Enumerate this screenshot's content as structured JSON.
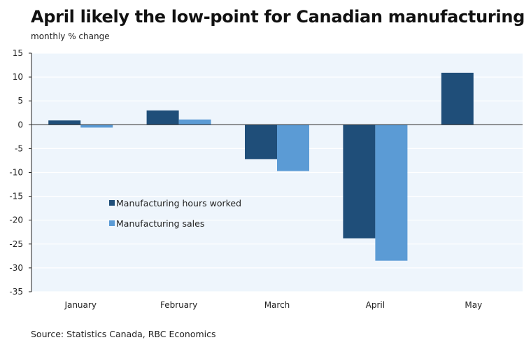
{
  "title": "April likely the low-point for Canadian manufacturing",
  "subtitle": "monthly % change",
  "source": "Source: Statistics Canada, RBC Economics",
  "colors": {
    "hours": "#1f4e79",
    "sales": "#5b9bd5",
    "plot_bg": "#eef5fc",
    "grid": "#ffffff"
  },
  "chart_data": {
    "type": "bar",
    "title": "April likely the low-point for Canadian manufacturing",
    "ylabel": "monthly % change",
    "xlabel": "",
    "categories": [
      "January",
      "February",
      "March",
      "April",
      "May"
    ],
    "ylim": [
      -35,
      15
    ],
    "yticks": [
      15,
      10,
      5,
      0,
      -5,
      -10,
      -15,
      -20,
      -25,
      -30,
      -35
    ],
    "grid": true,
    "legend_position": "center-left",
    "series": [
      {
        "name": "Manufacturing hours worked",
        "values": [
          0.9,
          3.0,
          -7.2,
          -23.8,
          10.9
        ]
      },
      {
        "name": "Manufacturing sales",
        "values": [
          -0.6,
          1.1,
          -9.7,
          -28.5,
          null
        ]
      }
    ]
  }
}
